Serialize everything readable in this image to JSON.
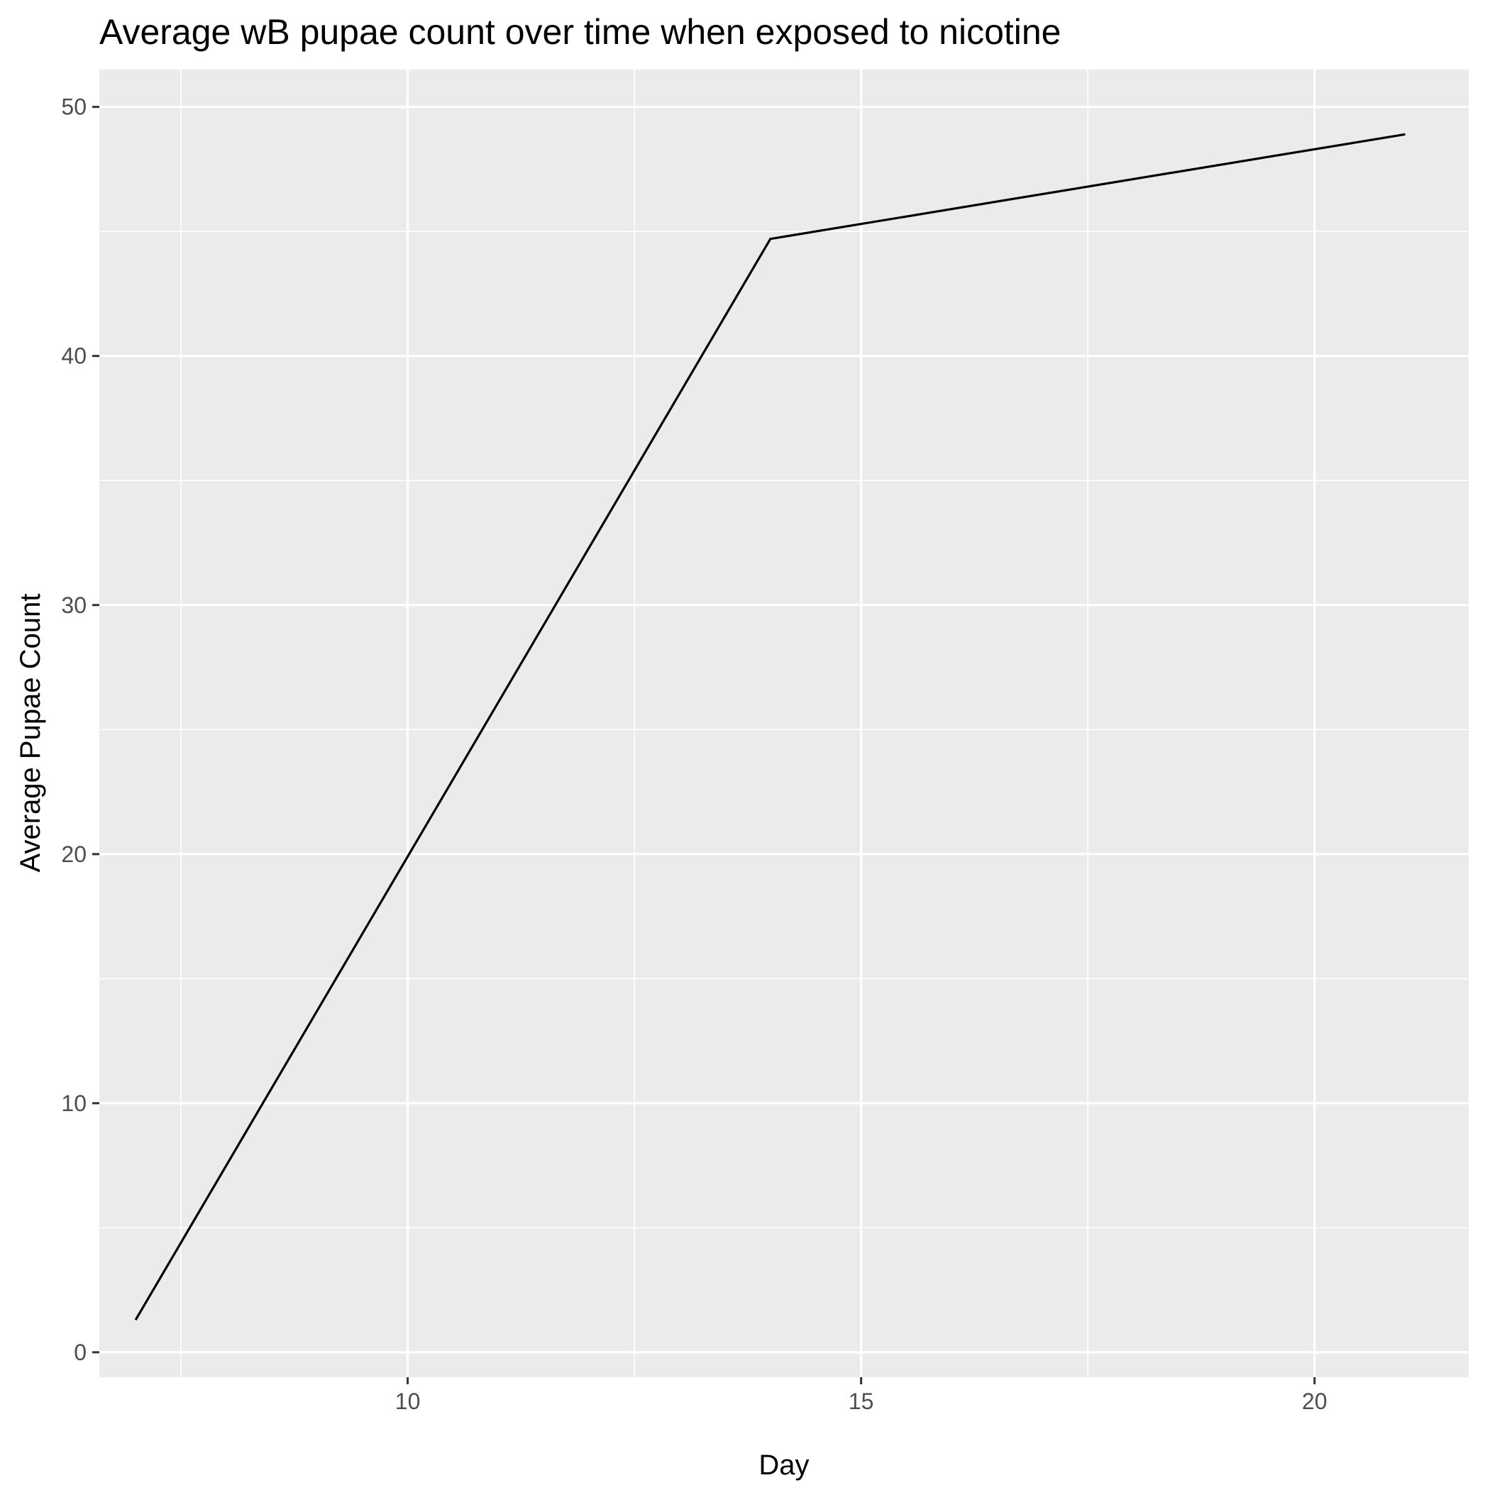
{
  "chart_data": {
    "type": "line",
    "title": "Average wB pupae count over time when exposed to nicotine",
    "xlabel": "Day",
    "ylabel": "Average Pupae Count",
    "xlim": [
      6.6,
      21.7
    ],
    "ylim": [
      -1.0,
      51.5
    ],
    "x_ticks": [
      10,
      15,
      20
    ],
    "y_ticks": [
      0,
      10,
      20,
      30,
      40,
      50
    ],
    "x_tick_labels": [
      "10",
      "15",
      "20"
    ],
    "y_tick_labels": [
      "0",
      "10",
      "20",
      "30",
      "40",
      "50"
    ],
    "grid": true,
    "legend": "none",
    "series": [
      {
        "x": [
          7,
          14,
          21
        ],
        "y": [
          1.3,
          44.7,
          48.9
        ]
      }
    ],
    "colors": {
      "panel": "#ebebeb",
      "grid": "#ffffff",
      "line": "#000000",
      "tick_label": "#4d4d4d"
    }
  }
}
